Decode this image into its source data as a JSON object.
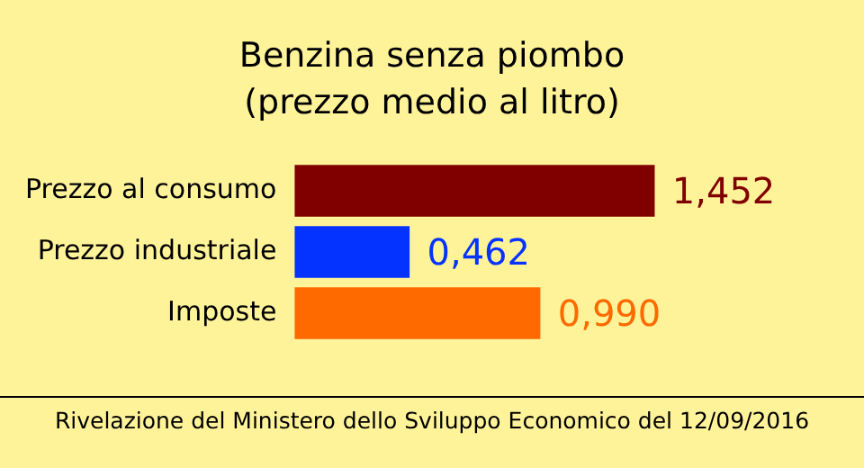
{
  "chart_data": {
    "type": "bar",
    "orientation": "horizontal",
    "title": "Benzina senza piombo\n(prezzo medio al litro)",
    "categories": [
      "Prezzo al consumo",
      "Prezzo industriale",
      "Imposte"
    ],
    "values": [
      1.452,
      0.462,
      0.99
    ],
    "colors": [
      "#800000",
      "#0433ff",
      "#ff6a00"
    ],
    "value_labels": [
      "1,452",
      "0,462",
      "0,990"
    ],
    "annotations": [
      "Rivelazione del Ministero dello Sviluppo Economico del 12/09/2016"
    ],
    "grid": false,
    "legend": false
  }
}
